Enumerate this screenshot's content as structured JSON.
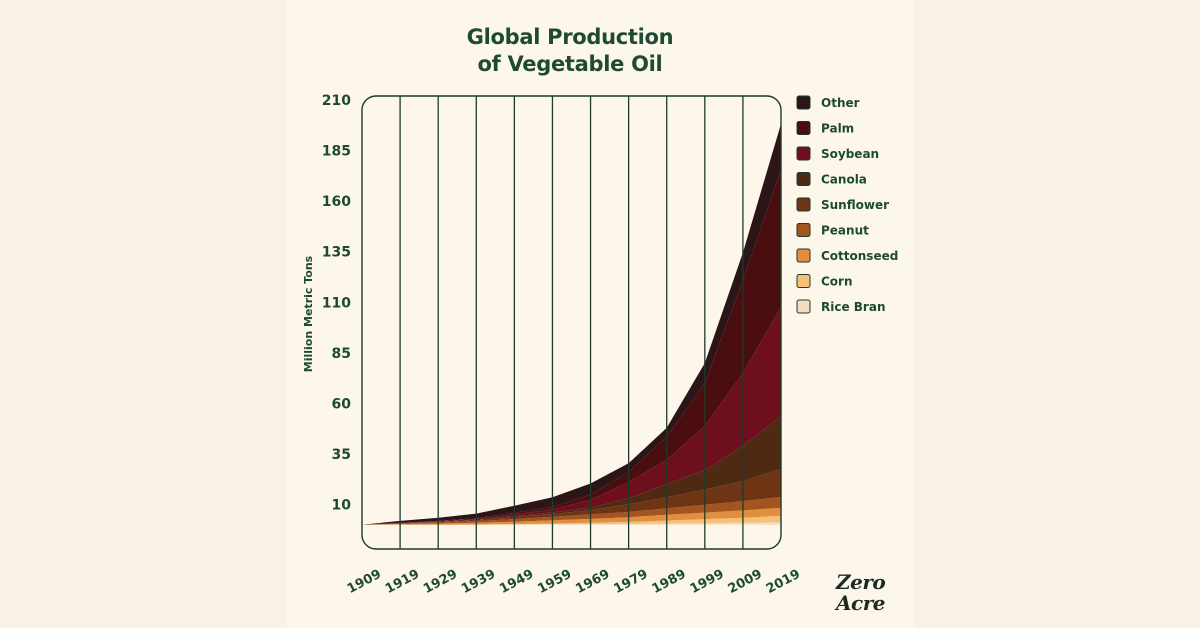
{
  "colors": {
    "text": "#1e4a33",
    "plot_stroke": "#1e3a2a",
    "plot_bg": "#fdf6ea"
  },
  "logo": {
    "line1": "Zero",
    "line2": "Acre"
  },
  "chart_data": {
    "type": "area",
    "stacked": true,
    "title": [
      "Global Production",
      "of Vegetable Oil"
    ],
    "ylabel": "Million Metric Tons",
    "xlabel": "",
    "x": [
      1909,
      1919,
      1929,
      1939,
      1949,
      1959,
      1969,
      1979,
      1989,
      1999,
      2009,
      2019
    ],
    "x_tick_labels": [
      "1909",
      "1919",
      "1929",
      "1939",
      "1949",
      "1959",
      "1969",
      "1979",
      "1989",
      "1999",
      "2009",
      "2019"
    ],
    "ylim": [
      -12,
      212
    ],
    "y_ticks": [
      10,
      35,
      60,
      85,
      110,
      135,
      160,
      185,
      210
    ],
    "y_tick_labels": [
      "10",
      "35",
      "60",
      "85",
      "110",
      "135",
      "160",
      "185",
      "210"
    ],
    "grid": "vertical",
    "legend_position": "right",
    "series": [
      {
        "name": "Rice Bran",
        "color": "#f3dcc2",
        "values": [
          0,
          0,
          0,
          0,
          0.1,
          0.2,
          0.3,
          0.4,
          0.6,
          0.8,
          1.0,
          1.2
        ]
      },
      {
        "name": "Corn",
        "color": "#f5c07a",
        "values": [
          0,
          0,
          0,
          0.1,
          0.2,
          0.4,
          0.7,
          1.0,
          1.5,
          2.0,
          2.5,
          3.2
        ]
      },
      {
        "name": "Cottonseed",
        "color": "#e08f3e",
        "values": [
          0,
          0.3,
          0.6,
          0.9,
          1.2,
          1.6,
          1.9,
          2.3,
          2.8,
          3.2,
          3.6,
          4.0
        ]
      },
      {
        "name": "Peanut",
        "color": "#a4541f",
        "values": [
          0,
          0.2,
          0.5,
          0.8,
          1.3,
          1.7,
          2.2,
          2.6,
          3.2,
          3.9,
          4.6,
          5.3
        ]
      },
      {
        "name": "Sunflower",
        "color": "#6e3514",
        "values": [
          0,
          0.1,
          0.2,
          0.4,
          0.9,
          1.4,
          2.1,
          3.8,
          5.5,
          7.5,
          9.8,
          14.0
        ]
      },
      {
        "name": "Canola",
        "color": "#4e2a12",
        "values": [
          0,
          0.1,
          0.2,
          0.3,
          0.5,
          0.8,
          1.2,
          3.0,
          6.5,
          9.5,
          17.5,
          26.0
        ]
      },
      {
        "name": "Soybean",
        "color": "#6e0f1e",
        "values": [
          0,
          0.1,
          0.2,
          0.4,
          0.9,
          1.5,
          4.0,
          8.0,
          12.0,
          22.0,
          36.0,
          54.0
        ]
      },
      {
        "name": "Palm",
        "color": "#4a0d10",
        "values": [
          0,
          0.1,
          0.2,
          0.4,
          0.8,
          1.2,
          2.5,
          4.9,
          11.5,
          21.0,
          46.0,
          68.0
        ]
      },
      {
        "name": "Other",
        "color": "#2b1517",
        "values": [
          0,
          1.0,
          1.6,
          2.2,
          3.5,
          4.8,
          5.5,
          4.4,
          4.3,
          10.0,
          13.5,
          22.5
        ]
      }
    ],
    "legend_order": [
      "Other",
      "Palm",
      "Soybean",
      "Canola",
      "Sunflower",
      "Peanut",
      "Cottonseed",
      "Corn",
      "Rice Bran"
    ]
  }
}
